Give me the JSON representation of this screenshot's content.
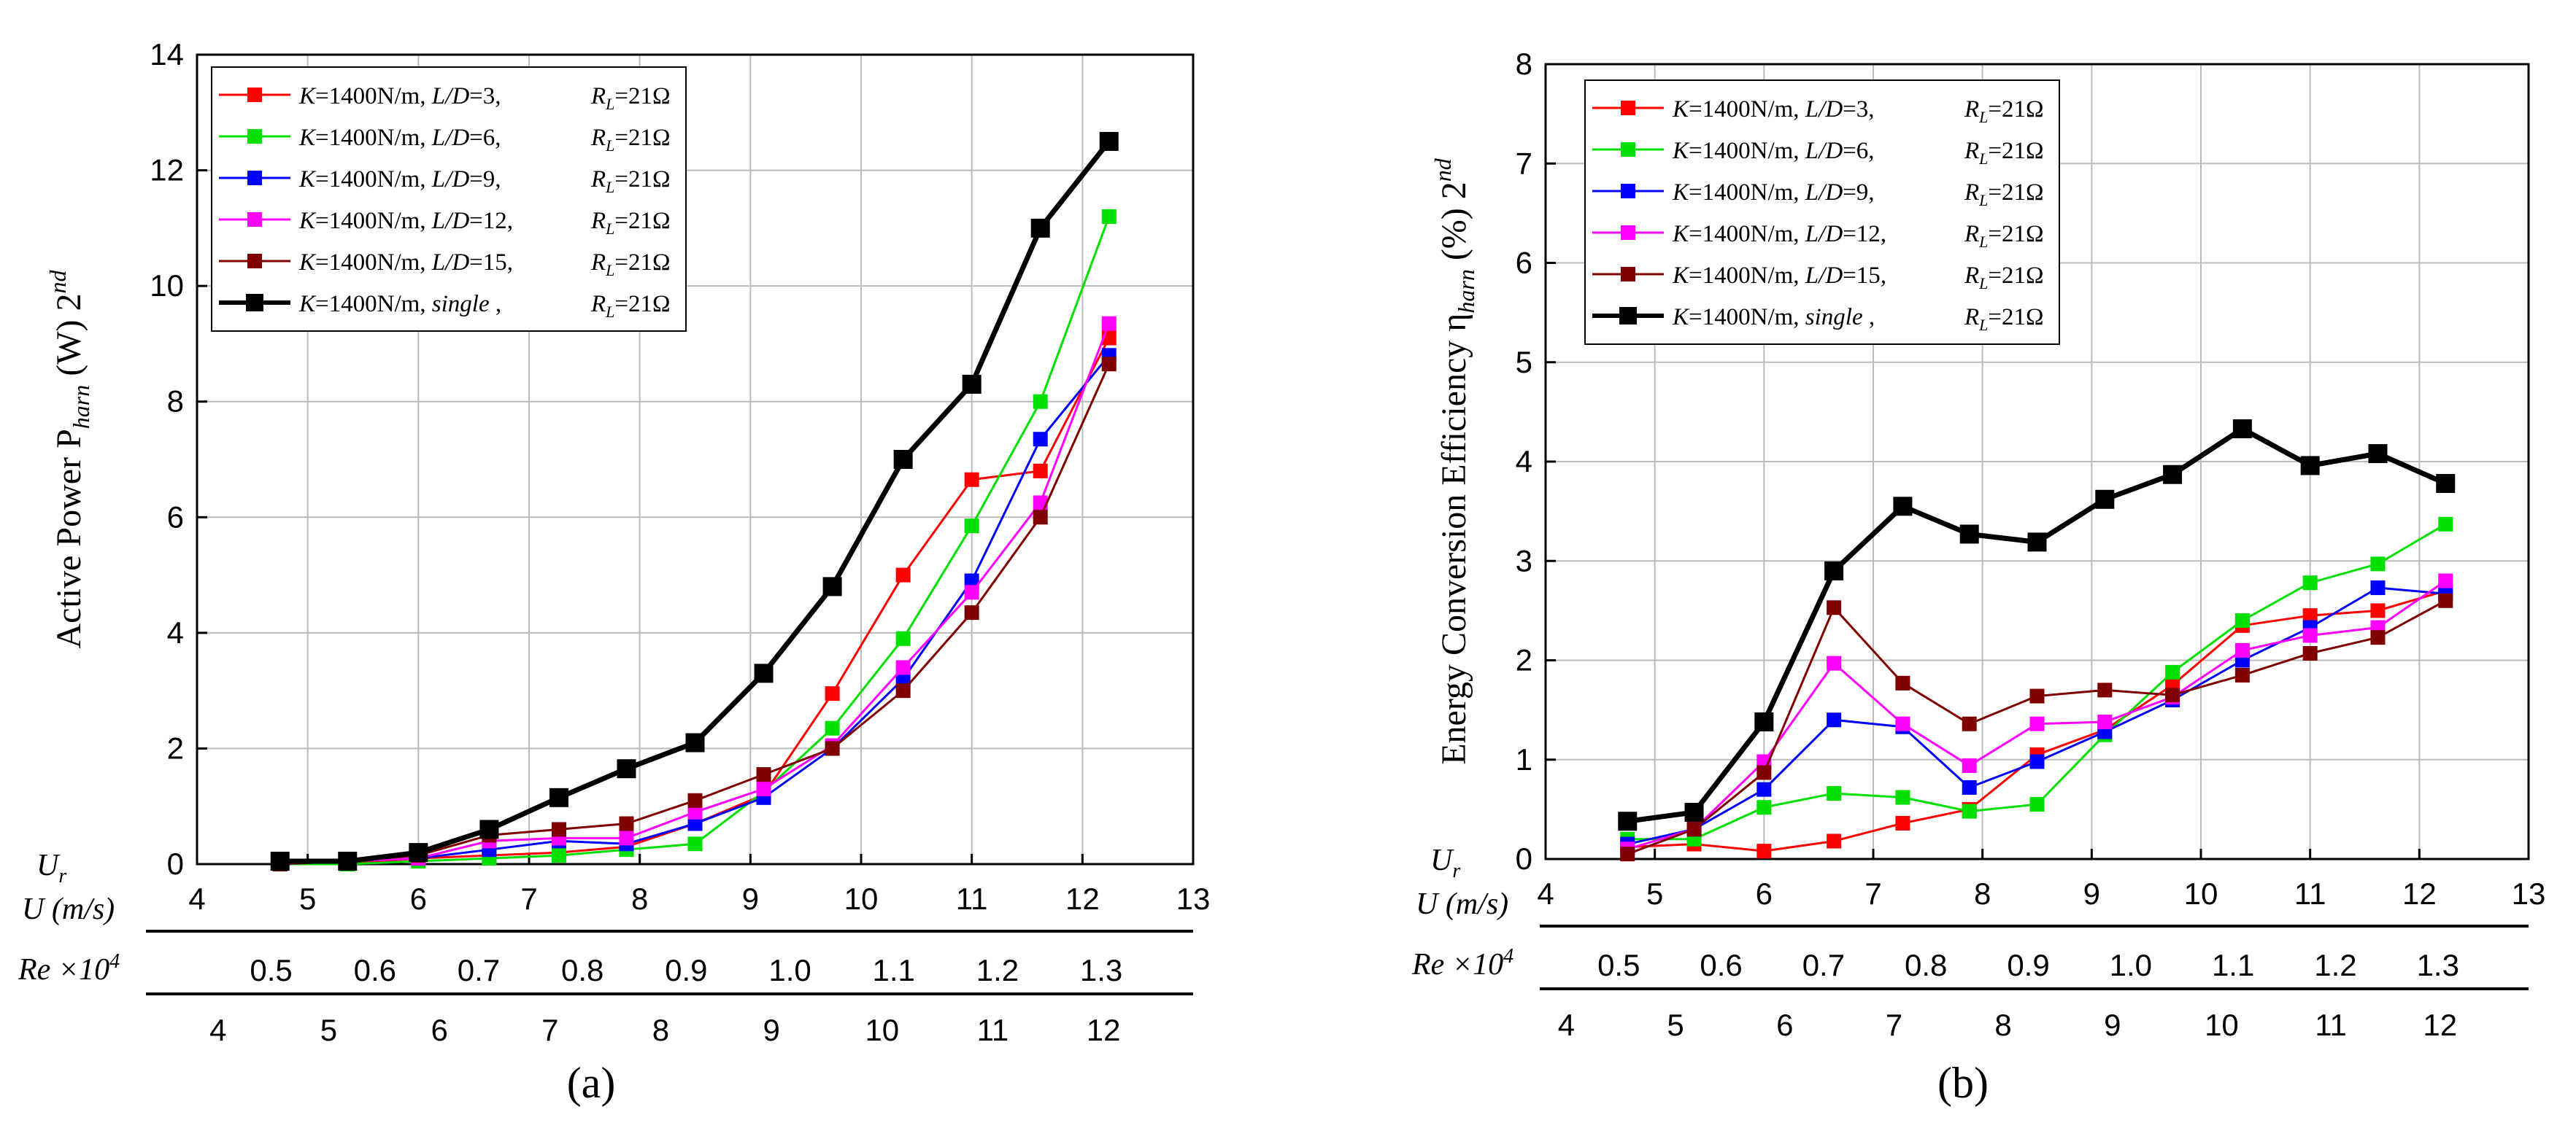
{
  "chart_data": [
    {
      "id": "a",
      "type": "line",
      "subcaption": "(a)",
      "ylabel": {
        "main": "Active Power P",
        "sub": "harn",
        "tail": " (W) 2",
        "sup": "nd"
      },
      "ylim": [
        0,
        14
      ],
      "yticks": [
        0,
        2,
        4,
        6,
        8,
        10,
        12,
        14
      ],
      "xlim": [
        4,
        13
      ],
      "xticks": [
        4,
        5,
        6,
        7,
        8,
        9,
        10,
        11,
        12,
        13
      ],
      "axis_labels": {
        "ur": "U",
        "ur_sub": "r",
        "u": "U (m/s)",
        "re": "Re ×10",
        "re_sup": "4"
      },
      "u_ticks": {
        "labels": [
          "0.5",
          "0.6",
          "0.7",
          "0.8",
          "0.9",
          "1.0",
          "1.1",
          "1.2",
          "1.3"
        ],
        "start": 4.67,
        "step": 0.9375
      },
      "re_ticks": {
        "labels": [
          "4",
          "5",
          "6",
          "7",
          "8",
          "9",
          "10",
          "11",
          "12"
        ],
        "start": 4.19,
        "step": 1.0
      },
      "series": [
        {
          "name": "K=1400N/m, L/D=3,   R_L=21Ω",
          "color": "#ff0000",
          "x": [
            4.75,
            5.36,
            6.0,
            6.64,
            7.27,
            7.88,
            8.5,
            9.12,
            9.74,
            10.38,
            11.0,
            11.62,
            12.24
          ],
          "values": [
            0.0,
            0.0,
            0.1,
            0.15,
            0.2,
            0.3,
            0.7,
            1.2,
            2.95,
            5.0,
            6.65,
            6.8,
            9.1
          ]
        },
        {
          "name": "K=1400N/m, L/D=6,   R_L=21Ω",
          "color": "#00e000",
          "x": [
            4.75,
            5.36,
            6.0,
            6.64,
            7.27,
            7.88,
            8.5,
            9.12,
            9.74,
            10.38,
            11.0,
            11.62,
            12.24
          ],
          "values": [
            0.0,
            0.0,
            0.05,
            0.1,
            0.15,
            0.25,
            0.35,
            1.25,
            2.35,
            3.9,
            5.85,
            8.0,
            11.2
          ]
        },
        {
          "name": "K=1400N/m, L/D=9,   R_L=21Ω",
          "color": "#0000ff",
          "x": [
            4.75,
            5.36,
            6.0,
            6.64,
            7.27,
            7.88,
            8.5,
            9.12,
            9.74,
            10.38,
            11.0,
            11.62,
            12.24
          ],
          "values": [
            0.05,
            0.05,
            0.1,
            0.25,
            0.4,
            0.35,
            0.7,
            1.15,
            2.0,
            3.2,
            4.9,
            7.35,
            8.8
          ]
        },
        {
          "name": "K=1400N/m, L/D=12, R_L=21Ω",
          "color": "#ff00ff",
          "x": [
            4.75,
            5.36,
            6.0,
            6.64,
            7.27,
            7.88,
            8.5,
            9.12,
            9.74,
            10.38,
            11.0,
            11.62,
            12.24
          ],
          "values": [
            0.0,
            0.05,
            0.1,
            0.4,
            0.45,
            0.45,
            0.9,
            1.3,
            2.05,
            3.4,
            4.7,
            6.25,
            9.35
          ]
        },
        {
          "name": "K=1400N/m, L/D=15, R_L=21Ω",
          "color": "#800000",
          "x": [
            4.75,
            5.36,
            6.0,
            6.64,
            7.27,
            7.88,
            8.5,
            9.12,
            9.74,
            10.38,
            11.0,
            11.62,
            12.24
          ],
          "values": [
            0.0,
            0.05,
            0.15,
            0.5,
            0.6,
            0.7,
            1.1,
            1.55,
            2.0,
            3.0,
            4.35,
            6.0,
            8.65
          ]
        },
        {
          "name": "K=1400N/m, single ,  R_L=21Ω",
          "color": "#000000",
          "x": [
            4.75,
            5.36,
            6.0,
            6.64,
            7.27,
            7.88,
            8.5,
            9.12,
            9.74,
            10.38,
            11.0,
            11.62,
            12.24
          ],
          "values": [
            0.05,
            0.05,
            0.2,
            0.6,
            1.15,
            1.65,
            2.1,
            3.3,
            4.8,
            7.0,
            8.3,
            11.0,
            12.5
          ]
        }
      ]
    },
    {
      "id": "b",
      "type": "line",
      "subcaption": "(b)",
      "ylabel": {
        "main": "Energy Conversion Efficiency η",
        "sub": "harn",
        "tail": " (%) 2",
        "sup": "nd"
      },
      "ylim": [
        0,
        8
      ],
      "yticks": [
        0,
        1,
        2,
        3,
        4,
        5,
        6,
        7,
        8
      ],
      "xlim": [
        4,
        13
      ],
      "xticks": [
        4,
        5,
        6,
        7,
        8,
        9,
        10,
        11,
        12,
        13
      ],
      "axis_labels": {
        "ur": "U",
        "ur_sub": "r",
        "u": "U (m/s)",
        "re": "Re ×10",
        "re_sup": "4"
      },
      "u_ticks": {
        "labels": [
          "0.5",
          "0.6",
          "0.7",
          "0.8",
          "0.9",
          "1.0",
          "1.1",
          "1.2",
          "1.3"
        ],
        "start": 4.67,
        "step": 0.9375
      },
      "re_ticks": {
        "labels": [
          "4",
          "5",
          "6",
          "7",
          "8",
          "9",
          "10",
          "11",
          "12"
        ],
        "start": 4.19,
        "step": 1.0
      },
      "series": [
        {
          "name": "K=1400N/m, L/D=3,   R_L=21Ω",
          "color": "#ff0000",
          "x": [
            4.75,
            5.36,
            6.0,
            6.64,
            7.27,
            7.88,
            8.5,
            9.12,
            9.74,
            10.38,
            11.0,
            11.62,
            12.24
          ],
          "values": [
            0.12,
            0.15,
            0.08,
            0.18,
            0.36,
            0.5,
            1.05,
            1.3,
            1.75,
            2.35,
            2.45,
            2.5,
            2.7
          ]
        },
        {
          "name": "K=1400N/m, L/D=6,   R_L=21Ω",
          "color": "#00e000",
          "x": [
            4.75,
            5.36,
            6.0,
            6.64,
            7.27,
            7.88,
            8.5,
            9.12,
            9.74,
            10.38,
            11.0,
            11.62,
            12.24
          ],
          "values": [
            0.2,
            0.2,
            0.52,
            0.66,
            0.62,
            0.48,
            0.55,
            1.25,
            1.88,
            2.4,
            2.78,
            2.97,
            3.37
          ]
        },
        {
          "name": "K=1400N/m, L/D=9,   R_L=21Ω",
          "color": "#0000ff",
          "x": [
            4.75,
            5.36,
            6.0,
            6.64,
            7.27,
            7.88,
            8.5,
            9.12,
            9.74,
            10.38,
            11.0,
            11.62,
            12.24
          ],
          "values": [
            0.15,
            0.3,
            0.7,
            1.4,
            1.33,
            0.72,
            0.98,
            1.28,
            1.6,
            2.0,
            2.33,
            2.73,
            2.67
          ]
        },
        {
          "name": "K=1400N/m, L/D=12, R_L=21Ω",
          "color": "#ff00ff",
          "x": [
            4.75,
            5.36,
            6.0,
            6.64,
            7.27,
            7.88,
            8.5,
            9.12,
            9.74,
            10.38,
            11.0,
            11.62,
            12.24
          ],
          "values": [
            0.1,
            0.3,
            0.98,
            1.97,
            1.36,
            0.94,
            1.36,
            1.38,
            1.63,
            2.1,
            2.25,
            2.33,
            2.8
          ]
        },
        {
          "name": "K=1400N/m, L/D=15, R_L=21Ω",
          "color": "#800000",
          "x": [
            4.75,
            5.36,
            6.0,
            6.64,
            7.27,
            7.88,
            8.5,
            9.12,
            9.74,
            10.38,
            11.0,
            11.62,
            12.24
          ],
          "values": [
            0.05,
            0.3,
            0.87,
            2.53,
            1.77,
            1.36,
            1.64,
            1.7,
            1.65,
            1.85,
            2.07,
            2.23,
            2.6
          ]
        },
        {
          "name": "K=1400N/m, single ,  R_L=21Ω",
          "color": "#000000",
          "x": [
            4.75,
            5.36,
            6.0,
            6.64,
            7.27,
            7.88,
            8.5,
            9.12,
            9.74,
            10.38,
            11.0,
            11.62,
            12.24
          ],
          "values": [
            0.38,
            0.47,
            1.38,
            2.9,
            3.55,
            3.27,
            3.19,
            3.62,
            3.87,
            4.33,
            3.96,
            4.08,
            3.78
          ]
        }
      ]
    }
  ],
  "legend_parts": [
    {
      "k": "K",
      "rest1": "=1400N/m, ",
      "ld": "L/D",
      "rest2": "=3,",
      "rl": "R",
      "rlsub": "L",
      "rest3": "=21Ω"
    },
    {
      "k": "K",
      "rest1": "=1400N/m, ",
      "ld": "L/D",
      "rest2": "=6,",
      "rl": "R",
      "rlsub": "L",
      "rest3": "=21Ω"
    },
    {
      "k": "K",
      "rest1": "=1400N/m, ",
      "ld": "L/D",
      "rest2": "=9,",
      "rl": "R",
      "rlsub": "L",
      "rest3": "=21Ω"
    },
    {
      "k": "K",
      "rest1": "=1400N/m, ",
      "ld": "L/D",
      "rest2": "=12,",
      "rl": "R",
      "rlsub": "L",
      "rest3": "=21Ω"
    },
    {
      "k": "K",
      "rest1": "=1400N/m, ",
      "ld": "L/D",
      "rest2": "=15,",
      "rl": "R",
      "rlsub": "L",
      "rest3": "=21Ω"
    },
    {
      "k": "K",
      "rest1": "=1400N/m, ",
      "ld": "single",
      "rest2": " ,",
      "rl": "R",
      "rlsub": "L",
      "rest3": "=21Ω"
    }
  ]
}
